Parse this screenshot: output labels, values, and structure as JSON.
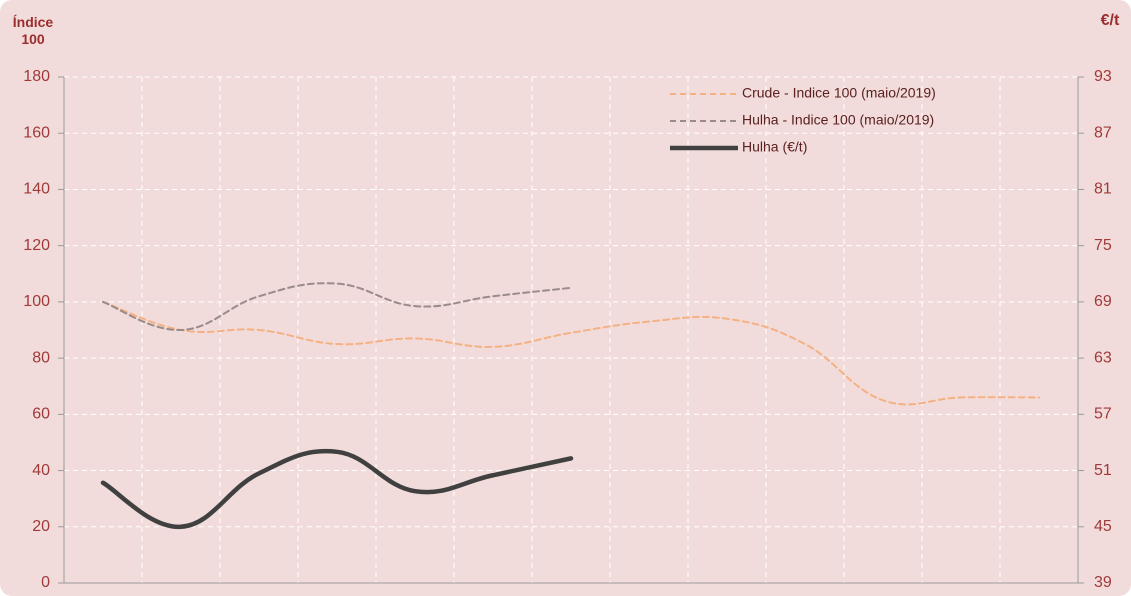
{
  "chart_data": {
    "type": "line",
    "ylabel": "Índice 100",
    "y2label": "€/t",
    "categories": [
      null,
      null,
      null,
      null,
      null,
      null,
      null,
      null,
      null,
      null,
      null,
      null,
      null
    ],
    "series": [
      {
        "name": "Crude - Indice 100 (maio/2019)",
        "color": "#f4b183",
        "dash": true,
        "values": [
          100,
          90,
          90,
          85,
          87,
          84,
          89,
          93,
          94,
          85,
          65,
          66,
          66
        ]
      },
      {
        "name": "Hulha - Indice 100 (maio/2019)",
        "color": "#9a8a8a",
        "dash": true,
        "values": [
          100,
          90,
          102,
          106.5,
          98.5,
          102,
          105,
          null,
          null,
          null,
          null,
          null,
          null
        ]
      },
      {
        "name": "Hulha (€/t)",
        "color": "#404040",
        "dash": false,
        "axis": "y2",
        "values": [
          49.7,
          45,
          50.7,
          53,
          48.8,
          50.5,
          52.3,
          null,
          null,
          null,
          null,
          null,
          null
        ]
      }
    ],
    "ylim": [
      0,
      180
    ],
    "yticks": [
      0,
      20,
      40,
      60,
      80,
      100,
      120,
      140,
      160,
      180
    ],
    "y2lim": [
      39,
      93
    ],
    "y2ticks": [
      39,
      45,
      51,
      57,
      63,
      69,
      75,
      81,
      87,
      93
    ],
    "grid": true,
    "legend": "top-right"
  }
}
